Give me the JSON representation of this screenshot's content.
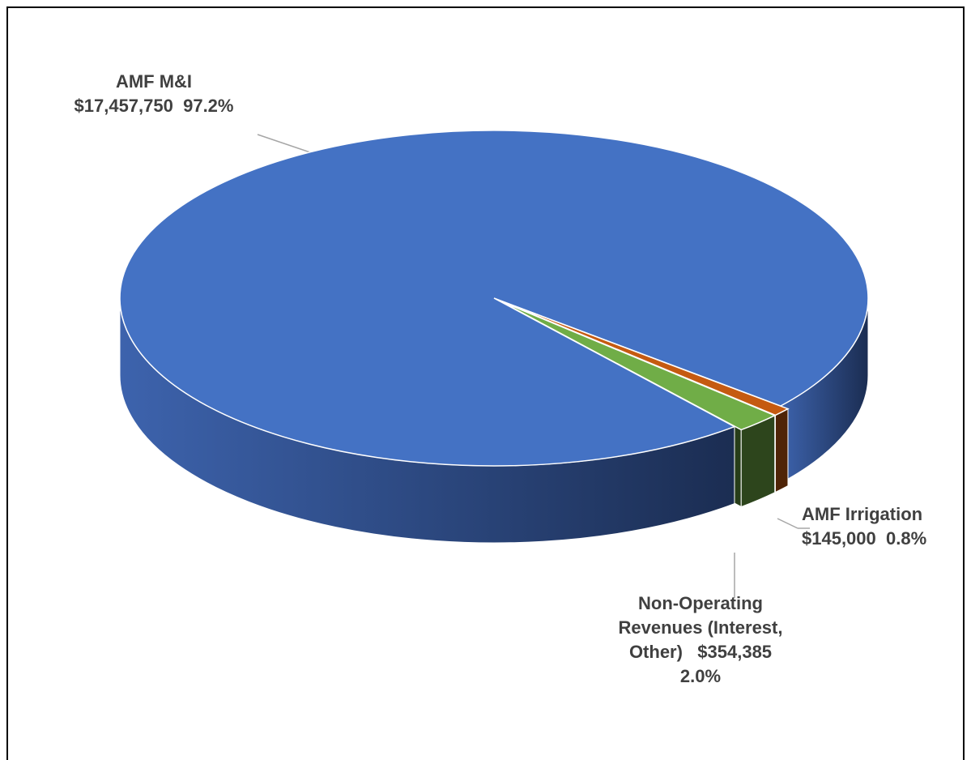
{
  "chart_data": {
    "type": "pie3d",
    "categories": [
      "AMF M&I",
      "AMF Irrigation",
      "Non-Operating Revenues (Interest, Other)"
    ],
    "values": [
      17457750,
      145000,
      354385
    ],
    "value_labels": [
      "$17,457,750",
      "$145,000",
      "$354,385"
    ],
    "percent_labels": [
      "97.2%",
      "0.8%",
      "2.0%"
    ],
    "colors": [
      "#4472c4",
      "#c55a11",
      "#70ad47"
    ]
  }
}
